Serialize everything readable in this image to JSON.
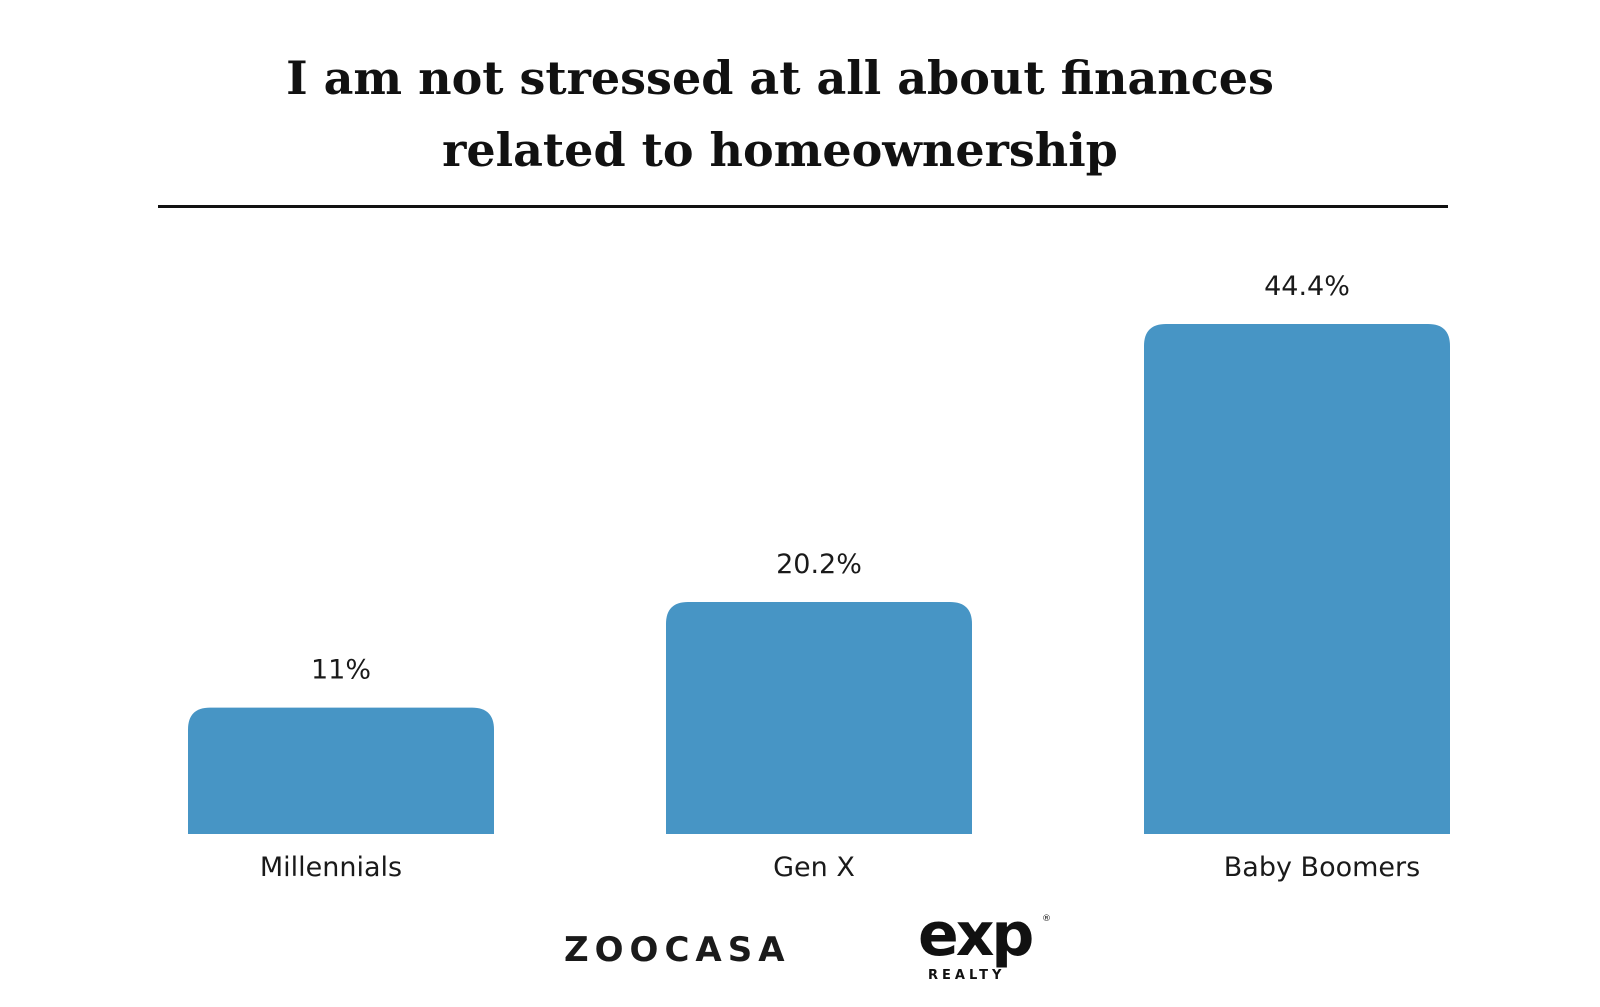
{
  "chart_data": {
    "type": "bar",
    "title": "I am not stressed at all about finances related to homeownership",
    "title_lines": [
      "I am not stressed at all about finances",
      "related to homeownership"
    ],
    "categories": [
      "Millennials",
      "Gen X",
      "Baby Boomers"
    ],
    "values": [
      11,
      20.2,
      44.4
    ],
    "value_labels": [
      "11%",
      "20.2%",
      "44.4%"
    ],
    "ylim": [
      0,
      44.4
    ],
    "grid": false,
    "legend": "none",
    "bar_color": "#4795C5"
  },
  "logos": {
    "zoocasa": "ZOOCASA",
    "exp_main": "exp",
    "exp_sub": "REALTY",
    "exp_reg": "®"
  }
}
